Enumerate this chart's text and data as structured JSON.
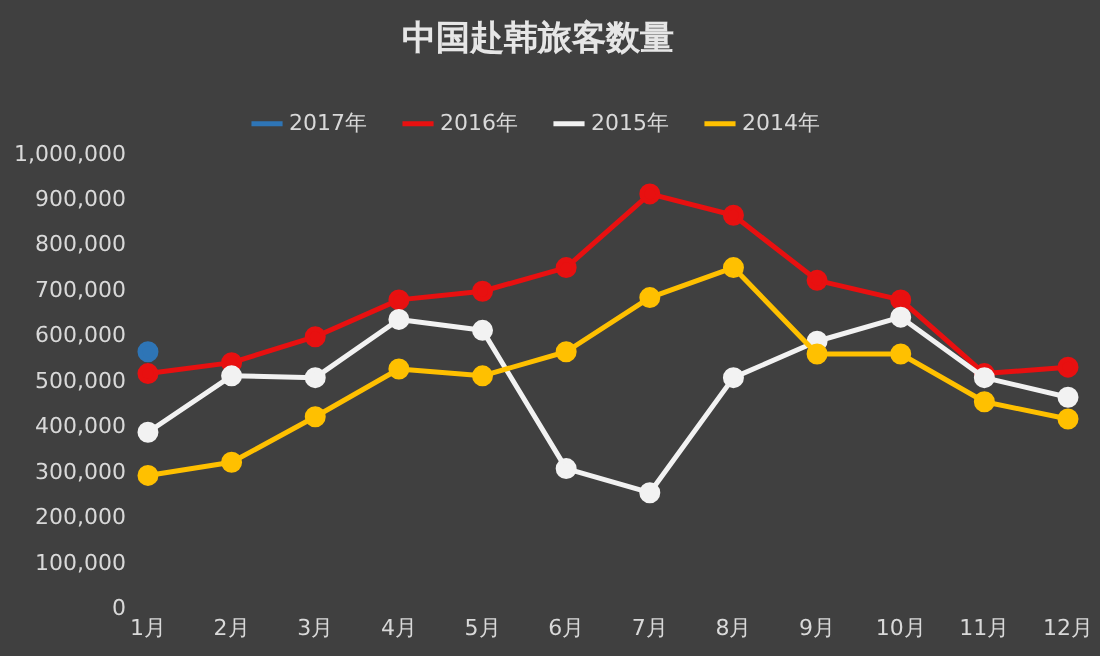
{
  "chart_data": {
    "type": "line",
    "title": "中国赴韩旅客数量",
    "categories": [
      "1月",
      "2月",
      "3月",
      "4月",
      "5月",
      "6月",
      "7月",
      "8月",
      "9月",
      "10月",
      "11月",
      "12月"
    ],
    "series": [
      {
        "name": "2017年",
        "color": "#2e75b6",
        "values": [
          567000,
          null,
          null,
          null,
          null,
          null,
          null,
          null,
          null,
          null,
          null,
          null
        ]
      },
      {
        "name": "2016年",
        "color": "#e81010",
        "values": [
          519000,
          543000,
          600000,
          681000,
          700000,
          752000,
          914000,
          867000,
          724000,
          681000,
          519000,
          533000
        ]
      },
      {
        "name": "2015年",
        "color": "#f2f2f2",
        "values": [
          390000,
          514000,
          510000,
          638000,
          614000,
          310000,
          257000,
          510000,
          590000,
          643000,
          510000,
          467000
        ]
      },
      {
        "name": "2014年",
        "color": "#ffc000",
        "values": [
          295000,
          324000,
          424000,
          529000,
          514000,
          567000,
          686000,
          752000,
          562000,
          562000,
          457000,
          419000
        ]
      }
    ],
    "ylim": [
      0,
      1000000
    ],
    "yticks": [
      {
        "value": 0,
        "label": "0"
      },
      {
        "value": 100000,
        "label": "100,000"
      },
      {
        "value": 200000,
        "label": "200,000"
      },
      {
        "value": 300000,
        "label": "300,000"
      },
      {
        "value": 400000,
        "label": "400,000"
      },
      {
        "value": 500000,
        "label": "500,000"
      },
      {
        "value": 600000,
        "label": "600,000"
      },
      {
        "value": 700000,
        "label": "700,000"
      },
      {
        "value": 800000,
        "label": "800,000"
      },
      {
        "value": 900000,
        "label": "900,000"
      },
      {
        "value": 1000000,
        "label": "1,000,000"
      }
    ],
    "grid": false,
    "legend": "top",
    "marker": "circle",
    "line_style": "solid"
  }
}
